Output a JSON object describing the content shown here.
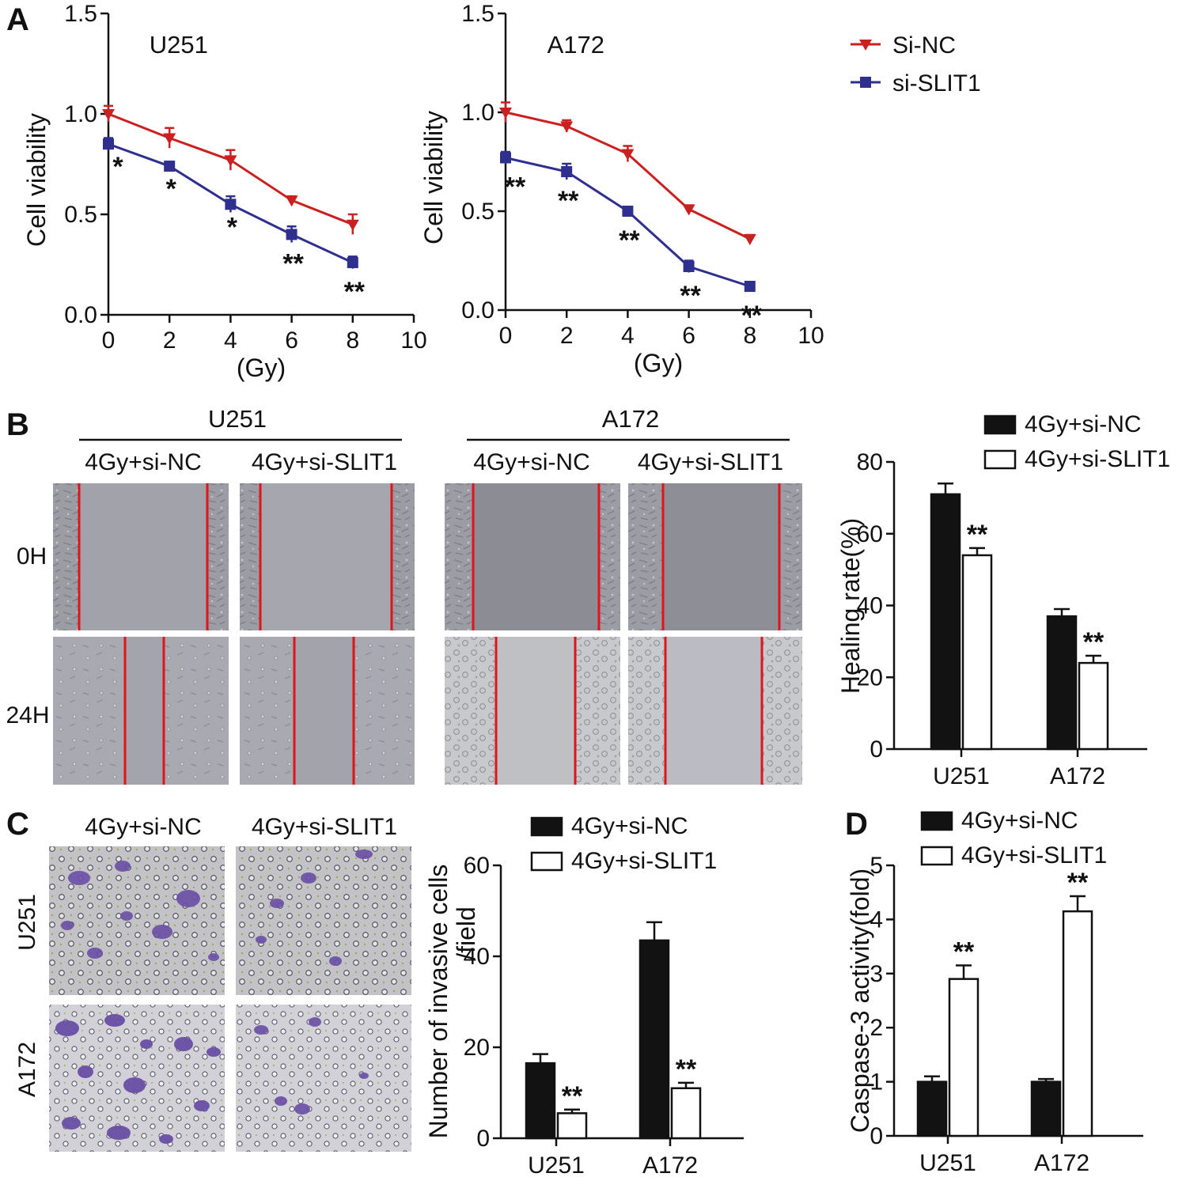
{
  "panels": {
    "A": {
      "letter": "A"
    },
    "B": {
      "letter": "B",
      "groups": [
        "U251",
        "A172"
      ],
      "conditions": [
        "4Gy+si-NC",
        "4Gy+si-SLIT1"
      ],
      "rows": [
        "0H",
        "24H"
      ]
    },
    "C": {
      "letter": "C",
      "conditions": [
        "4Gy+si-NC",
        "4Gy+si-SLIT1"
      ],
      "rows": [
        "U251",
        "A172"
      ]
    },
    "D": {
      "letter": "D"
    }
  },
  "colors": {
    "si_nc": "#cc1f1f",
    "si_slit1": "#2f2f8f",
    "bar_dark": "#121212",
    "scratch_line": "#e0141a",
    "crystal_violet": "#6a4fa6"
  },
  "chart_data": [
    {
      "id": "A-U251",
      "type": "line",
      "title": "U251",
      "xlabel": "(Gy)",
      "ylabel": "Cell viability",
      "xlim": [
        0,
        10
      ],
      "ylim": [
        0,
        1.5
      ],
      "xticks": [
        "0",
        "2",
        "4",
        "6",
        "8",
        "10"
      ],
      "yticks": [
        "0.0",
        "0.5",
        "1.0",
        "1.5"
      ],
      "x": [
        0,
        2,
        4,
        6,
        8
      ],
      "series": [
        {
          "name": "Si-NC",
          "values": [
            1.0,
            0.88,
            0.77,
            0.57,
            0.45
          ],
          "errors": [
            0.04,
            0.05,
            0.05,
            0.02,
            0.05
          ],
          "marker": "triangle-down"
        },
        {
          "name": "si-SLIT1",
          "values": [
            0.85,
            0.74,
            0.55,
            0.4,
            0.26
          ],
          "errors": [
            0.03,
            0.02,
            0.04,
            0.04,
            0.03
          ],
          "marker": "square",
          "significance": [
            "*",
            "*",
            "*",
            "**",
            "**"
          ]
        }
      ]
    },
    {
      "id": "A-A172",
      "type": "line",
      "title": "A172",
      "xlabel": "(Gy)",
      "ylabel": "Cell viability",
      "xlim": [
        0,
        10
      ],
      "ylim": [
        0,
        1.5
      ],
      "xticks": [
        "0",
        "2",
        "4",
        "6",
        "8",
        "10"
      ],
      "yticks": [
        "0.0",
        "0.5",
        "1.0",
        "1.5"
      ],
      "x": [
        0,
        2,
        4,
        6,
        8
      ],
      "series": [
        {
          "name": "Si-NC",
          "values": [
            1.0,
            0.93,
            0.79,
            0.51,
            0.36
          ],
          "errors": [
            0.05,
            0.03,
            0.04,
            0.02,
            0.02
          ],
          "marker": "triangle-down"
        },
        {
          "name": "si-SLIT1",
          "values": [
            0.77,
            0.7,
            0.5,
            0.22,
            0.12
          ],
          "errors": [
            0.03,
            0.04,
            0.02,
            0.03,
            0.01
          ],
          "marker": "square",
          "significance": [
            "**",
            "**",
            "**",
            "**",
            "**"
          ]
        }
      ],
      "legend": {
        "position": "right",
        "entries": [
          "Si-NC",
          "si-SLIT1"
        ]
      }
    },
    {
      "id": "B-bar",
      "type": "bar",
      "ylabel": "Healing rate(%)",
      "ylim": [
        0,
        80
      ],
      "yticks": [
        "0",
        "20",
        "40",
        "60",
        "80"
      ],
      "categories": [
        "U251",
        "A172"
      ],
      "series": [
        {
          "name": "4Gy+si-NC",
          "values": [
            71,
            37
          ],
          "errors": [
            3,
            2
          ]
        },
        {
          "name": "4Gy+si-SLIT1",
          "values": [
            54,
            24
          ],
          "errors": [
            2,
            2
          ],
          "significance": [
            "**",
            "**"
          ]
        }
      ],
      "legend": {
        "position": "top"
      }
    },
    {
      "id": "C-bar",
      "type": "bar",
      "ylabel_lines": [
        "Number of invasive cells",
        "/field"
      ],
      "ylim": [
        0,
        60
      ],
      "yticks": [
        "0",
        "20",
        "40",
        "60"
      ],
      "categories": [
        "U251",
        "A172"
      ],
      "series": [
        {
          "name": "4Gy+si-NC",
          "values": [
            16.5,
            43.5
          ],
          "errors": [
            2,
            4
          ]
        },
        {
          "name": "4Gy+si-SLIT1",
          "values": [
            5.5,
            11
          ],
          "errors": [
            0.8,
            1.2
          ],
          "significance": [
            "**",
            "**"
          ]
        }
      ],
      "legend": {
        "position": "top"
      }
    },
    {
      "id": "D-bar",
      "type": "bar",
      "ylabel": "Caspase-3 activity(fold)",
      "ylim": [
        0,
        5
      ],
      "yticks": [
        "0",
        "1",
        "2",
        "3",
        "4",
        "5"
      ],
      "categories": [
        "U251",
        "A172"
      ],
      "series": [
        {
          "name": "4Gy+si-NC",
          "values": [
            1.0,
            1.0
          ],
          "errors": [
            0.1,
            0.05
          ]
        },
        {
          "name": "4Gy+si-SLIT1",
          "values": [
            2.9,
            4.15
          ],
          "errors": [
            0.25,
            0.28
          ],
          "significance": [
            "**",
            "**"
          ]
        }
      ],
      "legend": {
        "position": "top"
      }
    }
  ]
}
